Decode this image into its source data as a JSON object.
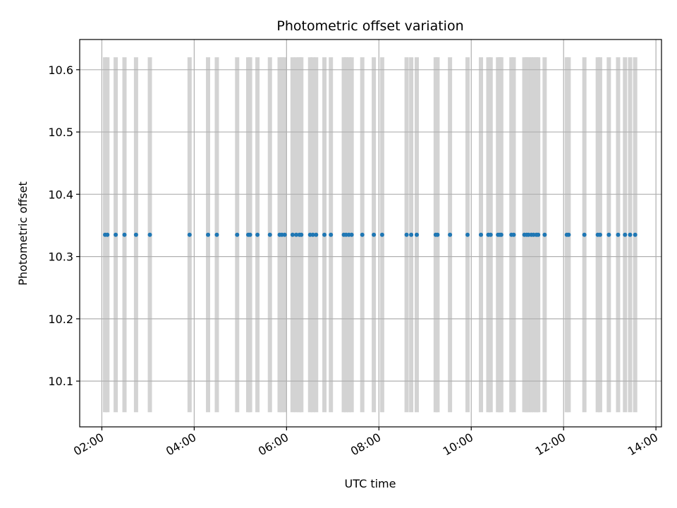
{
  "chart_data": {
    "type": "scatter",
    "title": "Photometric offset variation",
    "xlabel": "UTC time",
    "ylabel": "Photometric offset",
    "x_tick_labels": [
      "02:00",
      "04:00",
      "06:00",
      "08:00",
      "10:00",
      "12:00",
      "14:00"
    ],
    "x_tick_hours": [
      2,
      4,
      6,
      8,
      10,
      12,
      14
    ],
    "y_ticks": [
      10.1,
      10.2,
      10.3,
      10.4,
      10.5,
      10.6
    ],
    "y_tick_labels": [
      "10.1",
      "10.2",
      "10.3",
      "10.4",
      "10.5",
      "10.6"
    ],
    "xlim_hours": [
      1.52,
      14.12
    ],
    "ylim": [
      10.0265,
      10.6485
    ],
    "grid": true,
    "band_range": [
      10.05,
      10.62
    ],
    "band_color": "#d3d3d3",
    "point_color": "#1f77b4",
    "series": [
      {
        "y": 10.335,
        "x_hours": [
          2.07,
          2.12,
          2.3,
          2.49,
          2.74,
          3.04,
          3.9,
          4.3,
          4.49,
          4.93,
          5.17,
          5.21,
          5.37,
          5.64,
          5.85,
          5.9,
          5.96,
          6.13,
          6.21,
          6.28,
          6.32,
          6.51,
          6.57,
          6.64,
          6.82,
          6.96,
          7.24,
          7.29,
          7.35,
          7.41,
          7.64,
          7.89,
          8.07,
          8.6,
          8.7,
          8.82,
          9.23,
          9.27,
          9.54,
          9.92,
          10.21,
          10.37,
          10.42,
          10.58,
          10.62,
          10.65,
          10.87,
          10.92,
          11.15,
          11.2,
          11.24,
          11.3,
          11.35,
          11.41,
          11.45,
          11.59,
          12.07,
          12.11,
          12.45,
          12.74,
          12.79,
          12.98,
          13.18,
          13.33,
          13.44,
          13.55
        ]
      }
    ]
  }
}
